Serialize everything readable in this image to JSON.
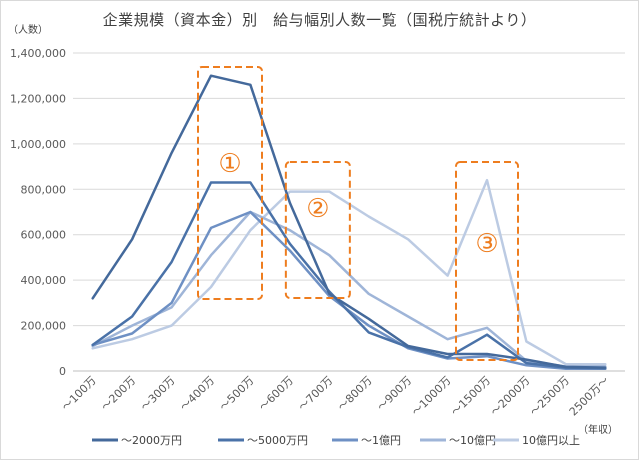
{
  "chart_data": {
    "type": "line",
    "title": "企業規模（資本金）別　給与幅別人数一覧（国税庁統計より）",
    "ylabel": "（人数）",
    "xlabel": "（年収）",
    "ylim": [
      0,
      1400000
    ],
    "yticks": [
      "0",
      "200,000",
      "400,000",
      "600,000",
      "800,000",
      "1,000,000",
      "1,200,000",
      "1,400,000"
    ],
    "categories": [
      "～100万",
      "～200万",
      "～300万",
      "～400万",
      "～500万",
      "～600万",
      "～700万",
      "～800万",
      "～900万",
      "～1000万",
      "～1500万",
      "～2000万",
      "～2500万",
      "2500万～"
    ],
    "grid": true,
    "legend_position": "bottom",
    "series": [
      {
        "name": "～2000万円",
        "color": "#44699b",
        "values": [
          320000,
          580000,
          960000,
          1300000,
          1260000,
          740000,
          340000,
          230000,
          110000,
          75000,
          75000,
          50000,
          18000,
          15000
        ]
      },
      {
        "name": "～5000万円",
        "color": "#4a72a8",
        "values": [
          115000,
          240000,
          480000,
          830000,
          830000,
          560000,
          350000,
          170000,
          105000,
          60000,
          160000,
          35000,
          15000,
          12000
        ]
      },
      {
        "name": "～1億円",
        "color": "#6e90c4",
        "values": [
          115000,
          165000,
          300000,
          630000,
          700000,
          530000,
          330000,
          200000,
          100000,
          55000,
          65000,
          25000,
          10000,
          10000
        ]
      },
      {
        "name": "～10億円",
        "color": "#9fb5d8",
        "values": [
          110000,
          200000,
          280000,
          510000,
          700000,
          620000,
          510000,
          340000,
          240000,
          140000,
          190000,
          45000,
          20000,
          20000
        ]
      },
      {
        "name": "10億円以上",
        "color": "#bccbe3",
        "values": [
          100000,
          140000,
          200000,
          370000,
          620000,
          790000,
          790000,
          680000,
          580000,
          420000,
          840000,
          130000,
          30000,
          30000
        ]
      }
    ],
    "annotations": [
      {
        "label": "①",
        "style": "dashed-box",
        "color": "#ee7d1f"
      },
      {
        "label": "②",
        "style": "dashed-box",
        "color": "#ee7d1f"
      },
      {
        "label": "③",
        "style": "dashed-box",
        "color": "#ee7d1f"
      }
    ]
  }
}
